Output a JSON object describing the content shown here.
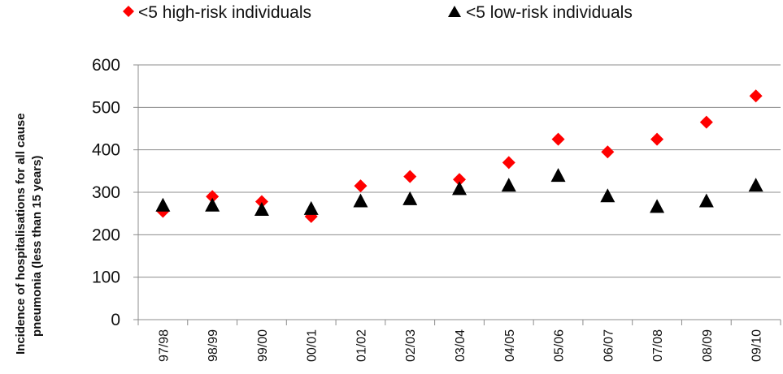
{
  "chart_data": {
    "type": "scatter",
    "title": "",
    "xlabel": "",
    "ylabel": "Incidence of  hospitalisations for all cause pneumonia (less than 15 years)",
    "ylabel_lines": [
      "Incidence of  hospitalisations for all cause",
      "pneumonia (less than 15 years)"
    ],
    "categories": [
      "97/98",
      "98/99",
      "99/00",
      "00/01",
      "01/02",
      "02/03",
      "03/04",
      "04/05",
      "05/06",
      "06/07",
      "07/08",
      "08/09",
      "09/10"
    ],
    "ylim": [
      0,
      600
    ],
    "yticks": [
      0,
      100,
      200,
      300,
      400,
      500,
      600
    ],
    "grid": true,
    "legend_position": "top",
    "series": [
      {
        "name": "<5 high-risk individuals",
        "marker": "diamond",
        "color": "#ff0000",
        "values": [
          255,
          290,
          278,
          243,
          315,
          337,
          330,
          370,
          425,
          395,
          425,
          465,
          527
        ]
      },
      {
        "name": "<5 low-risk individuals",
        "marker": "triangle",
        "color": "#000000",
        "values": [
          268,
          268,
          258,
          260,
          278,
          283,
          307,
          315,
          338,
          290,
          265,
          278,
          315
        ]
      }
    ]
  }
}
